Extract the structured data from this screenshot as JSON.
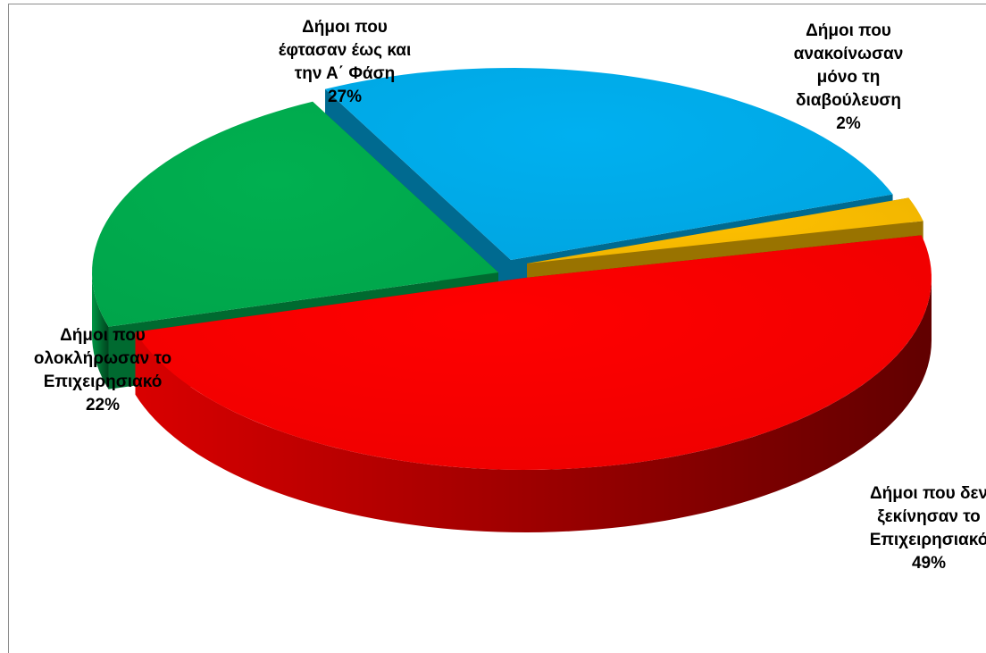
{
  "chart_data": {
    "type": "pie",
    "style": "3d-exploded",
    "title": "",
    "legend": "none",
    "slices": [
      {
        "label_lines": [
          "Δήμοι που",
          "ανακοίνωσαν",
          "μόνο τη",
          "διαβούλευση"
        ],
        "value": 2,
        "value_label": "2%",
        "color": "#ffc000"
      },
      {
        "label_lines": [
          "Δήμοι που δεν",
          "ξεκίνησαν το",
          "Επιχειρησιακό"
        ],
        "value": 49,
        "value_label": "49%",
        "color": "#ff0000"
      },
      {
        "label_lines": [
          "Δήμοι που",
          "ολοκλήρωσαν το",
          "Επιχειρησιακό"
        ],
        "value": 22,
        "value_label": "22%",
        "color": "#00b050"
      },
      {
        "label_lines": [
          "Δήμοι που",
          "έφτασαν έως και",
          "την Α΄ Φάση"
        ],
        "value": 27,
        "value_label": "27%",
        "color": "#00b0f0"
      }
    ]
  }
}
